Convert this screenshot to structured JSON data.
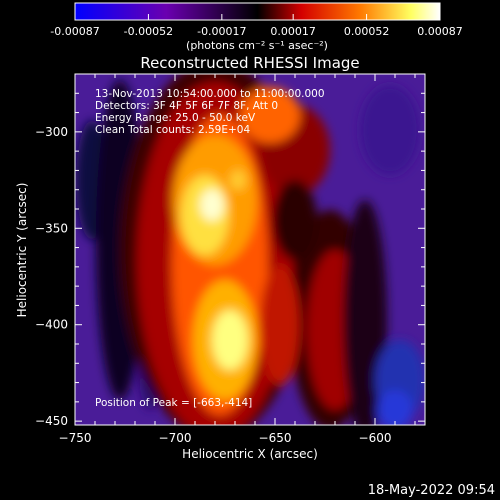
{
  "colorbar": {
    "tick_labels": [
      "-0.00087",
      "-0.00052",
      "-0.00017",
      "0.00017",
      "0.00052",
      "0.00087"
    ],
    "tick_values": [
      -0.00087,
      -0.00052,
      -0.00017,
      0.00017,
      0.00052,
      0.00087
    ],
    "range": [
      -0.00087,
      0.00087
    ],
    "unit_label": "(photons cm⁻² s⁻¹ asec⁻²)",
    "colormap": [
      "#0000ff",
      "#6a00b0",
      "#000000",
      "#d40000",
      "#ff7800",
      "#ffff60",
      "#ffffff"
    ]
  },
  "image": {
    "title": "Reconstructed RHESSI Image",
    "info_lines": [
      "13-Nov-2013 10:54:00.000 to 11:00:00.000",
      "Detectors: 3F 4F 5F 6F 7F 8F, Att 0",
      "Energy Range: 25.0 - 50.0 keV",
      "Clean     Total counts: 2.59E+04"
    ],
    "peak_label": "Position of Peak = [-663,-414]",
    "x_axis": {
      "label": "Heliocentric X (arcsec)",
      "range": [
        -750,
        -575
      ],
      "ticks": [
        -750,
        -700,
        -650,
        -600
      ],
      "tick_labels": [
        "−750",
        "−700",
        "−650",
        "−600"
      ]
    },
    "y_axis": {
      "label": "Heliocentric Y (arcsec)",
      "range": [
        -452,
        -270
      ],
      "ticks": [
        -300,
        -350,
        -400,
        -450
      ],
      "tick_labels": [
        "−300",
        "−350",
        "−400",
        "−450"
      ]
    }
  },
  "footer": {
    "date": "18-May-2022 09:54"
  }
}
